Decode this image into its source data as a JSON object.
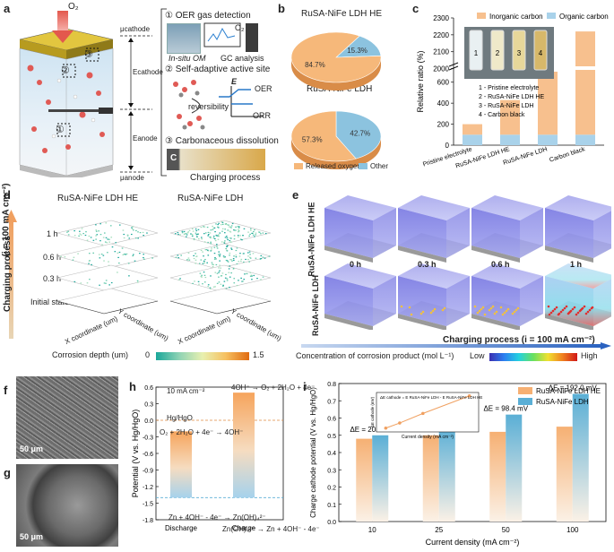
{
  "panel_labels": [
    "a",
    "b",
    "c",
    "d",
    "e",
    "f",
    "g",
    "h",
    "i"
  ],
  "panel_a": {
    "o2": "O₂",
    "mu_cathode": "μcathode",
    "mu_anode": "μanode",
    "e_cathode": "Ecathode",
    "e_anode": "Eanode",
    "markers": [
      "①",
      "②",
      "③"
    ],
    "steps": [
      "① OER gas detection",
      "② Self-adaptive active site",
      "③ Carbonaceous dissolution"
    ],
    "insitu_om": "In-situ OM",
    "gc_analysis": "GC analysis",
    "o2_label": "O₂",
    "e_label": "E",
    "oer": "OER",
    "orr": "ORR",
    "reversibility": "reversibility",
    "c_label": "C",
    "charging_process": "Charging process"
  },
  "panel_b": {
    "title_he": "RuSA-NiFe LDH HE",
    "title_ldh": "RuSA-NiFe LDH",
    "legend": [
      "Released oxygen",
      "Other"
    ],
    "colors": {
      "oxygen": "#F6B87A",
      "other": "#8CC3DF"
    }
  },
  "panel_d": {
    "title_he": "RuSA-NiFe LDH HE",
    "title_ldh": "RuSA-NiFe LDH",
    "layers": [
      "1 h",
      "0.6 h",
      "0.3 h",
      "Initial state"
    ],
    "ylabel_top": "Charging process",
    "ylabel_sub": "(i = 100 mA cm⁻²)",
    "x_axis": "X coordinate (um)",
    "y_axis": "Y coordinate (um)",
    "colorbar_label": "Corrosion depth (um)",
    "colorbar_min": "0",
    "colorbar_max": "1.5"
  },
  "panel_e": {
    "row1": "RuSA-NiFe LDH HE",
    "row2": "RuSA-NiFe LDH",
    "times": [
      "0 h",
      "0.3 h",
      "0.6 h",
      "1 h"
    ],
    "process": "Charging process  (i = 100 mA cm⁻²)",
    "colorbar_label": "Concentration of corrosion product (mol L⁻¹)",
    "low": "Low",
    "high": "High"
  },
  "panel_f": {
    "scale": "50 μm"
  },
  "panel_g": {
    "scale": "50 μm"
  },
  "panel_h": {
    "current": "10 mA cm⁻²",
    "ref": "Hg/HgO",
    "orr_eq": "O₂ + 2H₂O + 4e⁻ → 4OH⁻",
    "oer_eq": "4OH⁻ → O₂ + 2H₂O + 4e⁻",
    "zn_dis": "Zn + 4OH⁻ - 4e⁻ → Zn(OH)₄²⁻",
    "zn_ch": "Zn(OH)₄²⁻ → Zn + 4OH⁻ - 4e⁻"
  },
  "chart_data": [
    {
      "type": "pie",
      "title": "RuSA-NiFe LDH HE",
      "categories": [
        "Released oxygen",
        "Other"
      ],
      "values": [
        84.7,
        15.3
      ],
      "labels": [
        "84.7%",
        "15.3%"
      ]
    },
    {
      "type": "pie",
      "title": "RuSA-NiFe LDH",
      "categories": [
        "Released oxygen",
        "Other"
      ],
      "values": [
        57.3,
        42.7
      ],
      "labels": [
        "57.3%",
        "42.7%"
      ]
    },
    {
      "type": "bar",
      "stacked": true,
      "categories": [
        "Pristine electrolyte",
        "RuSA-NiFe LDH HE",
        "RuSA-NiFe LDH",
        "Carbon black"
      ],
      "series": [
        {
          "name": "Organic carbon",
          "values": [
            100,
            100,
            100,
            100
          ],
          "color": "#A9D2EA"
        },
        {
          "name": "Inorganic carbon",
          "values": [
            100,
            330,
            610,
            2120
          ],
          "color": "#F7C08E"
        }
      ],
      "ylabel": "Relative ratio (%)",
      "yticks": [
        "0",
        "200",
        "400",
        "600",
        "2000",
        "2100",
        "2200",
        "2300"
      ],
      "axis_break": [
        700,
        1950
      ],
      "vial_labels": [
        "1",
        "2",
        "3",
        "4"
      ],
      "vial_legend": [
        "1 - Pristine electrolyte",
        "2 - RuSA-NiFe LDH HE",
        "3 - RuSA-NiFe LDH",
        "4 - Carbon black"
      ]
    },
    {
      "type": "bar",
      "categories": [
        "Discharge",
        "Charge"
      ],
      "bars": [
        {
          "name": "Discharge",
          "bottom": -1.4,
          "top": -0.2
        },
        {
          "name": "Charge",
          "bottom": -1.4,
          "top": 0.5
        }
      ],
      "reference_lines": [
        {
          "name": "Hg/HgO",
          "value": 0.0
        },
        {
          "name": "Zn",
          "value": -1.4
        }
      ],
      "ylabel": "Potential (V vs. Hg/HgO)",
      "ylim": [
        -1.8,
        0.6
      ],
      "yticks": [
        "-1.8",
        "-1.5",
        "-1.2",
        "-0.9",
        "-0.6",
        "-0.3",
        "0.0",
        "0.3",
        "0.6"
      ]
    },
    {
      "type": "bar",
      "categories": [
        "10",
        "25",
        "50",
        "100"
      ],
      "series": [
        {
          "name": "RuSA-NiFe LDH HE",
          "values": [
            0.48,
            0.5,
            0.52,
            0.55
          ],
          "color": "#F6B073"
        },
        {
          "name": "RuSA-NiFe LDH",
          "values": [
            0.5,
            0.55,
            0.62,
            0.74
          ],
          "color": "#5AAFD6"
        }
      ],
      "annotations": [
        "ΔE = 20.3 mV",
        "ΔE = 47.5 mV",
        "ΔE = 98.4 mV",
        "ΔE = 192.0 mV"
      ],
      "xlabel": "Current density (mA cm⁻²)",
      "ylabel": "Charge cathode potential (V vs. Hg/HgO)",
      "ylim": [
        0.0,
        0.8
      ],
      "yticks": [
        "0.0",
        "0.1",
        "0.2",
        "0.3",
        "0.4",
        "0.5",
        "0.6",
        "0.7",
        "0.8"
      ],
      "inset": {
        "xlabel": "Current density (mA cm⁻²)",
        "ylabel": "ΔE cathode (mV)",
        "formula": "ΔE cathode = E RuSA-NiFe LDH - E RuSA-NiFe LDH HE",
        "x": [
          10,
          25,
          50,
          100
        ],
        "y": [
          20.3,
          47.5,
          98.4,
          192.0
        ]
      }
    }
  ]
}
